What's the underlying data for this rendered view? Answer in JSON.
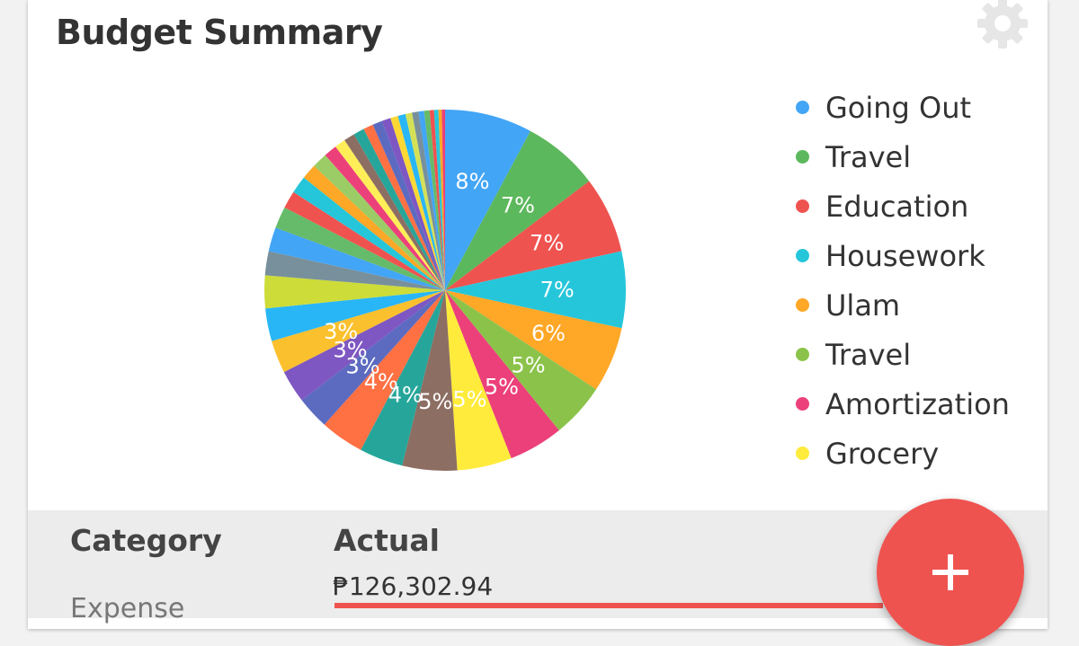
{
  "header": {
    "title": "Budget Summary"
  },
  "icons": {
    "settings": "gear-icon",
    "add": "plus-icon"
  },
  "legend": [
    {
      "label": "Going Out",
      "color": "#42a5f5"
    },
    {
      "label": "Travel",
      "color": "#5cb85c"
    },
    {
      "label": "Education",
      "color": "#ef5350"
    },
    {
      "label": "Housework",
      "color": "#26c6da"
    },
    {
      "label": "Ulam",
      "color": "#ffa726"
    },
    {
      "label": "Travel",
      "color": "#8bc34a"
    },
    {
      "label": "Amortization",
      "color": "#ec407a"
    },
    {
      "label": "Grocery",
      "color": "#ffeb3b"
    }
  ],
  "chart_data": {
    "type": "pie",
    "slices": [
      {
        "value": 8,
        "label": "8%",
        "color": "#42a5f5"
      },
      {
        "value": 7,
        "label": "7%",
        "color": "#5cb85c"
      },
      {
        "value": 7,
        "label": "7%",
        "color": "#ef5350"
      },
      {
        "value": 7,
        "label": "7%",
        "color": "#26c6da"
      },
      {
        "value": 6,
        "label": "6%",
        "color": "#ffa726"
      },
      {
        "value": 5,
        "label": "5%",
        "color": "#8bc34a"
      },
      {
        "value": 5,
        "label": "5%",
        "color": "#ec407a"
      },
      {
        "value": 5,
        "label": "5%",
        "color": "#ffeb3b"
      },
      {
        "value": 5,
        "label": "5%",
        "color": "#8d6e63"
      },
      {
        "value": 4,
        "label": "4%",
        "color": "#26a69a"
      },
      {
        "value": 4,
        "label": "4%",
        "color": "#ff7043"
      },
      {
        "value": 3,
        "label": "3%",
        "color": "#5c6bc0"
      },
      {
        "value": 3,
        "label": "3%",
        "color": "#7e57c2"
      },
      {
        "value": 3,
        "label": "3%",
        "color": "#fbc02d"
      },
      {
        "value": 3,
        "label": "",
        "color": "#29b6f6"
      },
      {
        "value": 3,
        "label": "",
        "color": "#cddc39"
      },
      {
        "value": 2.2,
        "label": "",
        "color": "#78909c"
      },
      {
        "value": 2.2,
        "label": "",
        "color": "#42a5f5"
      },
      {
        "value": 2,
        "label": "",
        "color": "#66bb6a"
      },
      {
        "value": 1.6,
        "label": "",
        "color": "#ef5350"
      },
      {
        "value": 1.6,
        "label": "",
        "color": "#26c6da"
      },
      {
        "value": 1.4,
        "label": "",
        "color": "#ffa726"
      },
      {
        "value": 1.4,
        "label": "",
        "color": "#9ccc65"
      },
      {
        "value": 1.2,
        "label": "",
        "color": "#ec407a"
      },
      {
        "value": 1,
        "label": "",
        "color": "#ffee58"
      },
      {
        "value": 1,
        "label": "",
        "color": "#8d6e63"
      },
      {
        "value": 1,
        "label": "",
        "color": "#26a69a"
      },
      {
        "value": 0.9,
        "label": "",
        "color": "#ff7043"
      },
      {
        "value": 0.9,
        "label": "",
        "color": "#5c6bc0"
      },
      {
        "value": 0.8,
        "label": "",
        "color": "#7e57c2"
      },
      {
        "value": 0.7,
        "label": "",
        "color": "#fdd835"
      },
      {
        "value": 0.7,
        "label": "",
        "color": "#29b6f6"
      },
      {
        "value": 0.6,
        "label": "",
        "color": "#d4e157"
      },
      {
        "value": 0.6,
        "label": "",
        "color": "#78909c"
      },
      {
        "value": 0.5,
        "label": "",
        "color": "#42a5f5"
      },
      {
        "value": 0.5,
        "label": "",
        "color": "#66bb6a"
      },
      {
        "value": 0.4,
        "label": "",
        "color": "#ef5350"
      },
      {
        "value": 0.4,
        "label": "",
        "color": "#26c6da"
      },
      {
        "value": 0.3,
        "label": "",
        "color": "#ffa726"
      },
      {
        "value": 0.3,
        "label": "",
        "color": "#ec407a"
      }
    ]
  },
  "table": {
    "headers": {
      "category": "Category",
      "actual": "Actual"
    },
    "rows": [
      {
        "category": "Expense",
        "actual": "₱126,302.94",
        "progress": 1.0
      }
    ]
  },
  "colors": {
    "accent": "#ef5350"
  }
}
